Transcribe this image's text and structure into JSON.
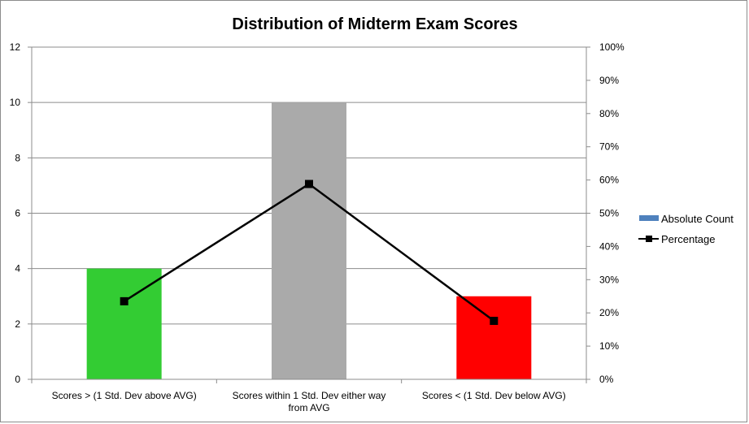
{
  "chart_data": {
    "type": "bar",
    "title": "Distribution of Midterm Exam Scores",
    "categories": [
      [
        "Scores > (1 Std. Dev above AVG)"
      ],
      [
        "Scores within 1 Std. Dev either way",
        "from AVG"
      ],
      [
        "Scores < (1 Std. Dev below AVG)"
      ]
    ],
    "series": [
      {
        "name": "Absolute Count",
        "type": "bar",
        "axis": "left",
        "values": [
          4,
          10,
          3
        ],
        "colors": [
          "#33cc33",
          "#aaaaaa",
          "#ff0000"
        ],
        "legend_color": "#4f81bd"
      },
      {
        "name": "Percentage",
        "type": "line",
        "axis": "right",
        "values": [
          23.5,
          58.8,
          17.6
        ],
        "color": "#000000",
        "marker": "square"
      }
    ],
    "y_left": {
      "min": 0,
      "max": 12,
      "ticks": [
        "0",
        "2",
        "4",
        "6",
        "8",
        "10",
        "12"
      ]
    },
    "y_right": {
      "min": 0,
      "max": 100,
      "ticks": [
        "0%",
        "10%",
        "20%",
        "30%",
        "40%",
        "50%",
        "60%",
        "70%",
        "80%",
        "90%",
        "100%"
      ]
    },
    "grid": "horizontal",
    "legend_position": "right"
  }
}
